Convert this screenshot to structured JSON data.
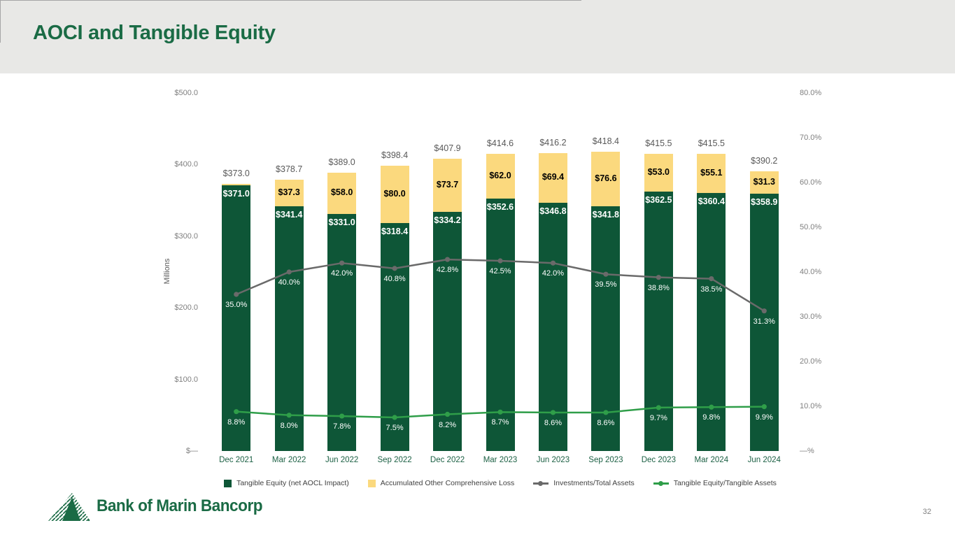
{
  "header": {
    "title": "AOCI and Tangible Equity"
  },
  "footer": {
    "logo_text": "Bank of Marin Bancorp",
    "page_number": "32"
  },
  "colors": {
    "header_bg": "#E8E8E6",
    "title_green": "#1A6B45",
    "bar_green": "#0E5637",
    "bar_yellow": "#FBD97E",
    "line_gray": "#6A6A6A",
    "line_green": "#2F9E49",
    "axis_text_gray": "#7F7F7F",
    "category_text_green": "#1D6145",
    "axis_line_gray": "#A6A6A6"
  },
  "chart_data": {
    "type": "bar",
    "subtype": "stacked-bars-with-two-overlay-lines",
    "grid": false,
    "legend_position": "bottom",
    "categories": [
      "Dec 2021",
      "Mar 2022",
      "Jun 2022",
      "Sep 2022",
      "Dec 2022",
      "Mar 2023",
      "Jun 2023",
      "Sep 2023",
      "Dec 2023",
      "Mar 2024",
      "Jun 2024"
    ],
    "series": [
      {
        "name": "Tangible Equity (net AOCL Impact)",
        "type": "bar",
        "stack": "equity",
        "axis": "left",
        "color": "#0E5637",
        "values": [
          371.0,
          341.4,
          331.0,
          318.4,
          334.2,
          352.6,
          346.8,
          341.8,
          362.5,
          360.4,
          358.9
        ],
        "labels": [
          "$371.0",
          "$341.4",
          "$331.0",
          "$318.4",
          "$334.2",
          "$352.6",
          "$346.8",
          "$341.8",
          "$362.5",
          "$360.4",
          "$358.9"
        ],
        "label_color": "#ffffff"
      },
      {
        "name": "Accumulated Other Comprehensive Loss",
        "type": "bar",
        "stack": "equity",
        "axis": "left",
        "color": "#FBD97E",
        "values": [
          2.0,
          37.3,
          58.0,
          80.0,
          73.7,
          62.0,
          69.4,
          76.6,
          53.0,
          55.1,
          31.3
        ],
        "labels": [
          "",
          "$37.3",
          "$58.0",
          "$80.0",
          "$73.7",
          "$62.0",
          "$69.4",
          "$76.6",
          "$53.0",
          "$55.1",
          "$31.3"
        ],
        "label_color": "#000000"
      },
      {
        "name": "Investments/Total Assets",
        "type": "line",
        "axis": "right",
        "color": "#6A6A6A",
        "values": [
          35.0,
          40.0,
          42.0,
          40.8,
          42.8,
          42.5,
          42.0,
          39.5,
          38.8,
          38.5,
          31.3
        ],
        "labels": [
          "35.0%",
          "40.0%",
          "42.0%",
          "40.8%",
          "42.8%",
          "42.5%",
          "42.0%",
          "39.5%",
          "38.8%",
          "38.5%",
          "31.3%"
        ]
      },
      {
        "name": "Tangible Equity/Tangible Assets",
        "type": "line",
        "axis": "right",
        "color": "#2F9E49",
        "values": [
          8.8,
          8.0,
          7.8,
          7.5,
          8.2,
          8.7,
          8.6,
          8.6,
          9.7,
          9.8,
          9.9
        ],
        "labels": [
          "8.8%",
          "8.0%",
          "7.8%",
          "7.5%",
          "8.2%",
          "8.7%",
          "8.6%",
          "8.6%",
          "9.7%",
          "9.8%",
          "9.9%"
        ]
      }
    ],
    "bar_totals": [
      373.0,
      378.7,
      389.0,
      398.4,
      407.9,
      414.6,
      416.2,
      418.4,
      415.5,
      415.5,
      390.2
    ],
    "bar_total_labels": [
      "$373.0",
      "$378.7",
      "$389.0",
      "$398.4",
      "$407.9",
      "$414.6",
      "$416.2",
      "$418.4",
      "$415.5",
      "$415.5",
      "$390.2"
    ],
    "left_axis": {
      "title": "Millions",
      "range": [
        0,
        500
      ],
      "ticks": [
        "$500.0",
        "$400.0",
        "$300.0",
        "$200.0",
        "$100.0",
        "$—"
      ]
    },
    "right_axis": {
      "range": [
        0,
        80
      ],
      "ticks": [
        "80.0%",
        "70.0%",
        "60.0%",
        "50.0%",
        "40.0%",
        "30.0%",
        "20.0%",
        "10.0%",
        "—%"
      ]
    },
    "legend": [
      {
        "label": "Tangible Equity (net AOCL Impact)",
        "marker": "square",
        "color": "#0E5637"
      },
      {
        "label": "Accumulated Other Comprehensive Loss",
        "marker": "square",
        "color": "#FBD97E"
      },
      {
        "label": "Investments/Total Assets",
        "marker": "line",
        "color": "#6A6A6A"
      },
      {
        "label": "Tangible Equity/Tangible Assets",
        "marker": "line",
        "color": "#2F9E49"
      }
    ]
  }
}
